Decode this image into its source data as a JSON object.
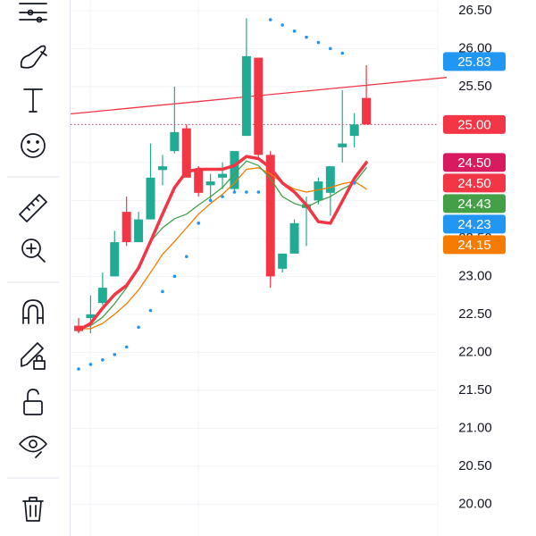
{
  "chart_data": {
    "type": "candlestick",
    "ylim": [
      19.58,
      26.64
    ],
    "yticks": [
      {
        "value": 26.5,
        "label": "26.50"
      },
      {
        "value": 26,
        "label": "26.00"
      },
      {
        "value": 25.5,
        "label": "25.50"
      },
      {
        "value": 25,
        "label": "25.00"
      },
      {
        "value": 24.5,
        "label": "24.50"
      },
      {
        "value": 24,
        "label": "24.00"
      },
      {
        "value": 23.5,
        "label": "23.50"
      },
      {
        "value": 23,
        "label": "23.00"
      },
      {
        "value": 22.5,
        "label": "22.50"
      },
      {
        "value": 22,
        "label": "22.00"
      },
      {
        "value": 21.5,
        "label": "21.50"
      },
      {
        "value": 21,
        "label": "21.00"
      },
      {
        "value": 20.5,
        "label": "20.50"
      },
      {
        "value": 20,
        "label": "20.00"
      }
    ],
    "grid": true,
    "up_color": "#22ab94",
    "down_color": "#f23645",
    "open": [
      22.35,
      22.45,
      22.65,
      23.0,
      23.85,
      23.45,
      23.75,
      24.4,
      24.65,
      24.95,
      24.4,
      24.2,
      24.3,
      24.15,
      24.85,
      25.88,
      24.6,
      23.1,
      23.3,
      23.9,
      24.0,
      24.1,
      24.7,
      24.85,
      25.35
    ],
    "high": [
      22.45,
      22.75,
      23.05,
      23.6,
      24.05,
      23.85,
      24.75,
      24.6,
      25.5,
      25.0,
      24.45,
      24.35,
      24.5,
      24.65,
      26.4,
      25.88,
      24.65,
      23.3,
      23.75,
      24.05,
      24.3,
      24.45,
      25.45,
      25.15,
      25.78
    ],
    "low": [
      22.25,
      22.25,
      22.62,
      23.0,
      23.4,
      23.45,
      23.75,
      24.2,
      24.62,
      24.3,
      24.05,
      24.0,
      24.15,
      24.1,
      24.85,
      24.55,
      22.85,
      23.05,
      23.3,
      23.4,
      23.95,
      23.8,
      24.5,
      24.7,
      25.0
    ],
    "close": [
      22.28,
      22.5,
      22.85,
      23.45,
      23.45,
      23.75,
      24.3,
      24.45,
      24.9,
      24.3,
      24.1,
      24.25,
      24.35,
      24.65,
      25.9,
      24.6,
      23.0,
      23.3,
      23.7,
      23.95,
      24.25,
      24.45,
      24.75,
      25.0,
      25.0
    ],
    "lines": [
      {
        "color": "#f57c00",
        "width": 1.3,
        "values": [
          22.31,
          22.31,
          22.38,
          22.5,
          22.64,
          22.82,
          23.05,
          23.29,
          23.46,
          23.64,
          23.82,
          23.96,
          24.08,
          24.23,
          24.41,
          24.43,
          24.35,
          24.23,
          24.15,
          24.11,
          24.14,
          24.17,
          24.22,
          24.25,
          24.15
        ]
      },
      {
        "color": "#43a047",
        "width": 1.3,
        "values": [
          22.31,
          22.35,
          22.46,
          22.64,
          22.85,
          23.11,
          23.46,
          23.64,
          23.76,
          23.82,
          23.94,
          24.05,
          24.17,
          24.35,
          24.52,
          24.46,
          24.29,
          24.05,
          23.96,
          23.91,
          23.99,
          24.05,
          24.15,
          24.23,
          24.43
        ]
      },
      {
        "color": "#f23645",
        "width": 3.5,
        "values": [
          22.29,
          22.38,
          22.58,
          22.76,
          22.88,
          23.11,
          23.46,
          23.82,
          24.17,
          24.38,
          24.41,
          24.41,
          24.41,
          24.46,
          24.58,
          24.55,
          24.43,
          24.23,
          24.11,
          23.94,
          23.72,
          23.7,
          23.99,
          24.29,
          24.5
        ]
      }
    ],
    "psar": {
      "color": "#2196f3",
      "values": [
        21.78,
        21.84,
        21.9,
        21.97,
        22.07,
        22.33,
        22.55,
        22.8,
        23.0,
        23.26,
        23.7,
        24.0,
        24.05,
        24.11,
        24.11,
        24.11,
        26.38,
        26.31,
        26.23,
        26.15,
        26.08,
        26.0,
        25.94,
        24.23,
        null
      ]
    },
    "trendline": {
      "color": "#f23645",
      "values": [
        25.14,
        25.62
      ]
    },
    "price_labels": {
      "values": [
        25.83,
        25.0,
        24.5,
        24.5,
        24.43,
        24.23,
        24.15
      ],
      "value_labels": [
        "25.83",
        "25.00",
        "24.50",
        "24.50",
        "24.43",
        "24.23",
        "24.15"
      ],
      "colors": [
        "#2196f3",
        "#f23645",
        "#d81b60",
        "#f23645",
        "#43a047",
        "#2196f3",
        "#f57c00"
      ]
    }
  }
}
